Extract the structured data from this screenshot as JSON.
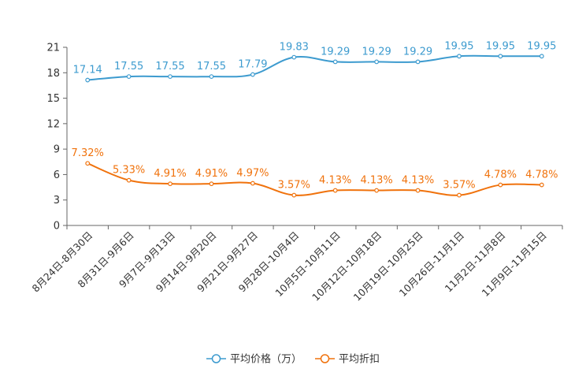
{
  "colors": {
    "price": "#3d9bcf",
    "discount": "#f0720c",
    "axis": "#666666",
    "text": "#333333"
  },
  "chart_data": {
    "type": "line",
    "title": "",
    "xlabel": "",
    "ylabel": "",
    "ylim": [
      0,
      21
    ],
    "yticks": [
      0,
      3,
      6,
      9,
      12,
      15,
      18,
      21
    ],
    "categories": [
      "8月24日-8月30日",
      "8月31日-9月6日",
      "9月7日-9月13日",
      "9月14日-9月20日",
      "9月21日-9月27日",
      "9月28日-10月4日",
      "10月5日-10月11日",
      "10月12日-10月18日",
      "10月19日-10月25日",
      "10月26日-11月1日",
      "11月2日-11月8日",
      "11月9日-11月15日"
    ],
    "series": [
      {
        "name": "平均价格（万）",
        "color": "#3d9bcf",
        "values": [
          17.14,
          17.55,
          17.55,
          17.55,
          17.79,
          19.83,
          19.29,
          19.29,
          19.29,
          19.95,
          19.95,
          19.95
        ],
        "labels": [
          "17.14",
          "17.55",
          "17.55",
          "17.55",
          "17.79",
          "19.83",
          "19.29",
          "19.29",
          "19.29",
          "19.95",
          "19.95",
          "19.95"
        ]
      },
      {
        "name": "平均折扣",
        "color": "#f0720c",
        "values": [
          7.32,
          5.33,
          4.91,
          4.91,
          4.97,
          3.57,
          4.13,
          4.13,
          4.13,
          3.57,
          4.78,
          4.78
        ],
        "labels": [
          "7.32%",
          "5.33%",
          "4.91%",
          "4.91%",
          "4.97%",
          "3.57%",
          "4.13%",
          "4.13%",
          "4.13%",
          "3.57%",
          "4.78%",
          "4.78%"
        ]
      }
    ],
    "legend": {
      "position": "bottom-center",
      "entries": [
        "平均价格（万）",
        "平均折扣"
      ]
    },
    "grid": false
  }
}
